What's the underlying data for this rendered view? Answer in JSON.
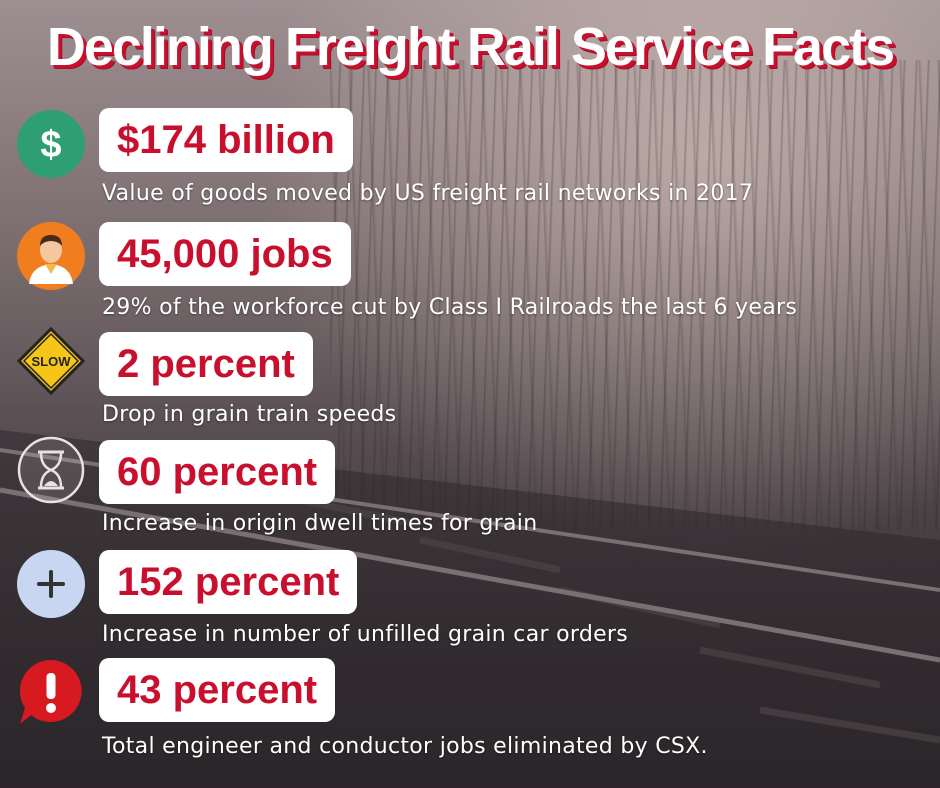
{
  "title": "Declining Freight Rail Service Facts",
  "colors": {
    "accent": "#c8102e",
    "badge_bg": "#ffffff",
    "desc_text": "#ffffff"
  },
  "facts": [
    {
      "icon": "dollar-icon",
      "stat": "$174 billion",
      "description": "Value of goods moved by US freight rail networks in 2017"
    },
    {
      "icon": "worker-icon",
      "stat": "45,000 jobs",
      "description": "29% of the workforce cut by Class I Railroads the last 6 years"
    },
    {
      "icon": "slow-sign-icon",
      "stat": "2 percent",
      "description": "Drop in grain train speeds"
    },
    {
      "icon": "hourglass-icon",
      "stat": "60 percent",
      "description": "Increase in origin dwell times for grain"
    },
    {
      "icon": "plus-icon",
      "stat": "152 percent",
      "description": "Increase in number of unfilled grain car orders"
    },
    {
      "icon": "exclamation-icon",
      "stat": "43 percent",
      "description": "Total engineer and conductor jobs eliminated by CSX."
    }
  ],
  "icon_text": {
    "slow": "SLOW"
  }
}
